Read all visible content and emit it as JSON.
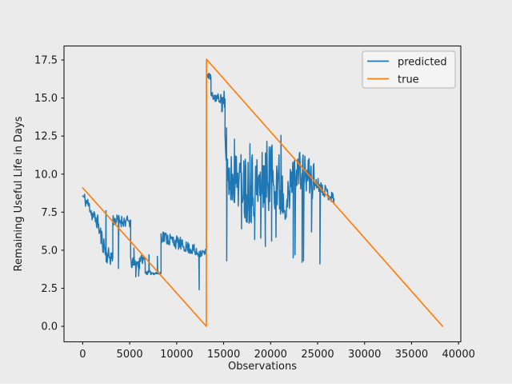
{
  "figure": {
    "background": "#ebebeb",
    "title": ""
  },
  "style": {
    "axes_bg": "#ebebeb",
    "spine_color": "#1a1a1a",
    "tick_color": "#1a1a1a",
    "text_color": "#1a1a1a",
    "legend_bg": "#f4f4f4",
    "legend_border": "#b4b4b4"
  },
  "chart_data": {
    "type": "line",
    "title": "",
    "xlabel": "Observations",
    "ylabel": "Remaining Useful Life in Days",
    "xlim": [
      -1990,
      40240
    ],
    "ylim": [
      -1.02,
      18.42
    ],
    "grid": false,
    "legend": {
      "position": "upper-right",
      "entries": [
        "predicted",
        "true"
      ]
    },
    "x_ticks": {
      "values": [
        0,
        5000,
        10000,
        15000,
        20000,
        25000,
        30000,
        35000,
        40000
      ],
      "labels": [
        "0",
        "5000",
        "10000",
        "15000",
        "20000",
        "25000",
        "30000",
        "35000",
        "40000"
      ]
    },
    "y_ticks": {
      "values": [
        0.0,
        2.5,
        5.0,
        7.5,
        10.0,
        12.5,
        15.0,
        17.5
      ],
      "labels": [
        "0.0",
        "2.5",
        "5.0",
        "7.5",
        "10.0",
        "12.5",
        "15.0",
        "17.5"
      ]
    },
    "series": [
      {
        "name": "predicted",
        "color": "#1f77b4",
        "style": "noisy-band",
        "segments": [
          [
            0,
            8.55,
            900,
            7.7,
            0.45
          ],
          [
            900,
            7.45,
            1700,
            6.75,
            0.5
          ],
          [
            1700,
            6.4,
            2450,
            4.9,
            0.65
          ],
          [
            2450,
            4.7,
            3200,
            4.5,
            0.55
          ],
          [
            3200,
            7.0,
            5100,
            6.85,
            0.4
          ],
          [
            5100,
            4.15,
            6050,
            4.1,
            0.38
          ],
          [
            6050,
            4.45,
            6650,
            4.35,
            0.28
          ],
          [
            6650,
            3.52,
            8340,
            3.48,
            0.12
          ],
          [
            8340,
            5.95,
            10450,
            5.4,
            0.45
          ],
          [
            10450,
            5.35,
            11900,
            5.0,
            0.38
          ],
          [
            11900,
            4.85,
            13170,
            4.8,
            0.3
          ],
          [
            13180,
            16.55,
            13650,
            16.35,
            0.22
          ],
          [
            13650,
            15.1,
            14800,
            14.95,
            0.3
          ],
          [
            14800,
            14.6,
            15150,
            14.2,
            1.2
          ],
          [
            15150,
            12.4,
            15420,
            10.8,
            2.0
          ],
          [
            15420,
            9.8,
            17200,
            9.6,
            1.8
          ],
          [
            17200,
            9.3,
            19100,
            9.1,
            2.5
          ],
          [
            19100,
            9.9,
            20700,
            10.0,
            2.4
          ],
          [
            20700,
            9.2,
            21300,
            9.2,
            2.4
          ],
          [
            21300,
            8.3,
            22050,
            8.3,
            1.3
          ],
          [
            22050,
            9.3,
            22900,
            10.5,
            1.2
          ],
          [
            22900,
            10.2,
            24850,
            9.5,
            1.4
          ],
          [
            24850,
            9.45,
            26750,
            8.35,
            0.42
          ]
        ],
        "spikes": [
          [
            2480,
            7.6
          ],
          [
            3800,
            3.8
          ],
          [
            5450,
            5.15
          ],
          [
            5650,
            3.25
          ],
          [
            5950,
            3.3
          ],
          [
            7050,
            4.7
          ],
          [
            7950,
            4.6
          ],
          [
            12400,
            2.4
          ],
          [
            15330,
            4.3
          ],
          [
            16150,
            12.3
          ],
          [
            16900,
            6.4
          ],
          [
            17800,
            12.0
          ],
          [
            18300,
            5.7
          ],
          [
            18950,
            5.8
          ],
          [
            19440,
            5.25
          ],
          [
            20100,
            5.6
          ],
          [
            20570,
            5.85
          ],
          [
            21100,
            12.55
          ],
          [
            22400,
            4.5
          ],
          [
            22600,
            4.7
          ],
          [
            23350,
            4.2
          ],
          [
            23500,
            4.3
          ],
          [
            24350,
            6.2
          ],
          [
            25250,
            4.1
          ]
        ]
      },
      {
        "name": "true",
        "color": "#ff7f0e",
        "style": "line",
        "points": [
          [
            0,
            9.1
          ],
          [
            13160,
            0.0
          ],
          [
            13175,
            17.55
          ],
          [
            38300,
            0.0
          ]
        ]
      }
    ]
  }
}
